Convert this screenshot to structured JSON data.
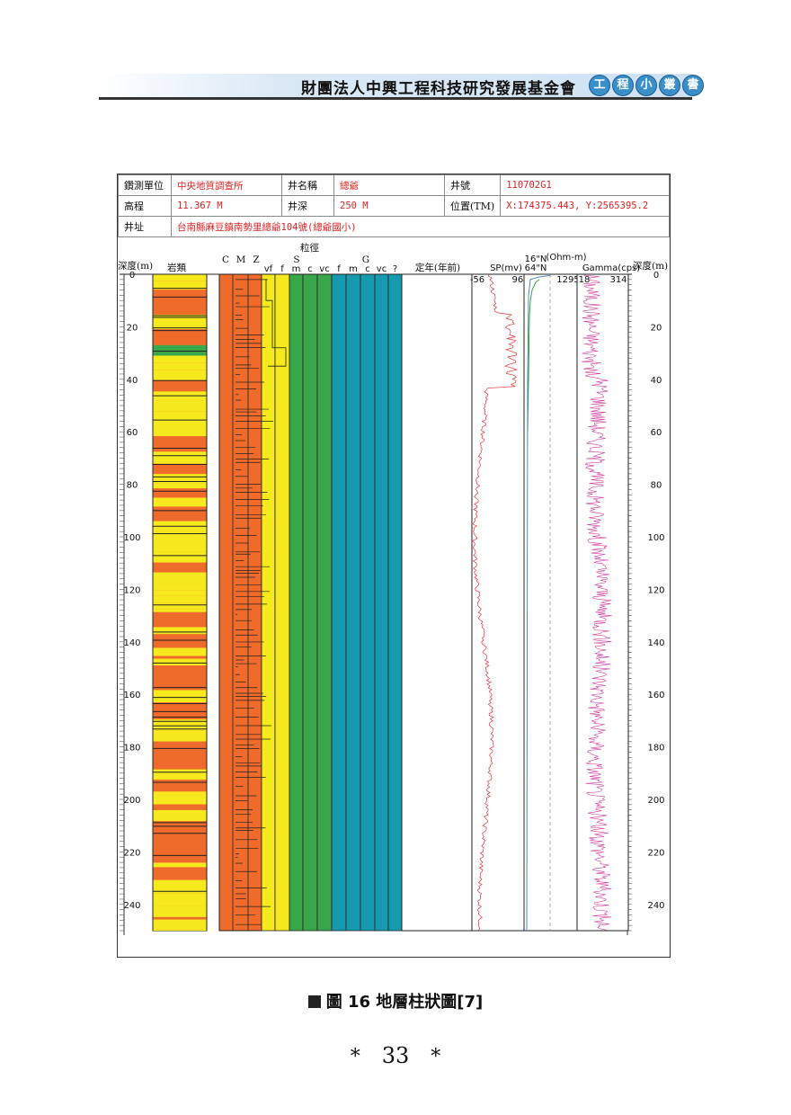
{
  "header": {
    "title": "財團法人中興工程科技研究發展基金會",
    "badge": [
      "工",
      "程",
      "小",
      "叢",
      "書"
    ]
  },
  "info": {
    "rows": [
      [
        {
          "label": "鑽測單位",
          "value": "中央地質調查所"
        },
        {
          "label": "井名稱",
          "value": "總爺"
        },
        {
          "label": "井號",
          "value": "110702G1"
        }
      ],
      [
        {
          "label": "高程",
          "value": "11.367 M"
        },
        {
          "label": "井深",
          "value": "250 M"
        },
        {
          "label": "位置(TM)",
          "value": "X:174375.443, Y:2565395.2"
        }
      ],
      [
        {
          "label": "井址",
          "value": "台南縣麻豆鎮南勢里總爺104號(總爺國小)"
        }
      ]
    ]
  },
  "log": {
    "depth_label": "深度(m)",
    "lithology_label": "岩類",
    "grain_label": "粒徑",
    "clay_silt_cols": [
      "C",
      "M",
      "Z"
    ],
    "sand_label": "S",
    "sand_cols": [
      "vf",
      "f",
      "m",
      "c",
      "vc"
    ],
    "gravel_label": "G",
    "gravel_cols": [
      "f",
      "m",
      "c",
      "vc",
      "?"
    ],
    "age_label": "定年(年前)",
    "sp_label": "SP(mv)",
    "sp_range": [
      "-56",
      "968"
    ],
    "res_label_1": "16\"N",
    "res_label_2": "64\"N",
    "res_unit": "(Ohm-m)",
    "res_range_end": "1295",
    "gamma_label": "Gamma(cps)",
    "gamma_range": [
      "18",
      "314"
    ],
    "depth_ticks": [
      "0",
      "20",
      "40",
      "60",
      "80",
      "100",
      "120",
      "140",
      "160",
      "180",
      "200",
      "220",
      "240"
    ],
    "colors": {
      "clay": "#ee6b2c",
      "sand": "#f6ea1e",
      "green": "#3aa64a",
      "gravel": "#159ab0",
      "sp": "#e8333a",
      "gamma": "#d23aa0",
      "res": "#3a7dc0"
    }
  },
  "caption": {
    "text": "圖 16  地層柱狀圖[7]"
  },
  "page": {
    "number": "33",
    "star": "*"
  }
}
